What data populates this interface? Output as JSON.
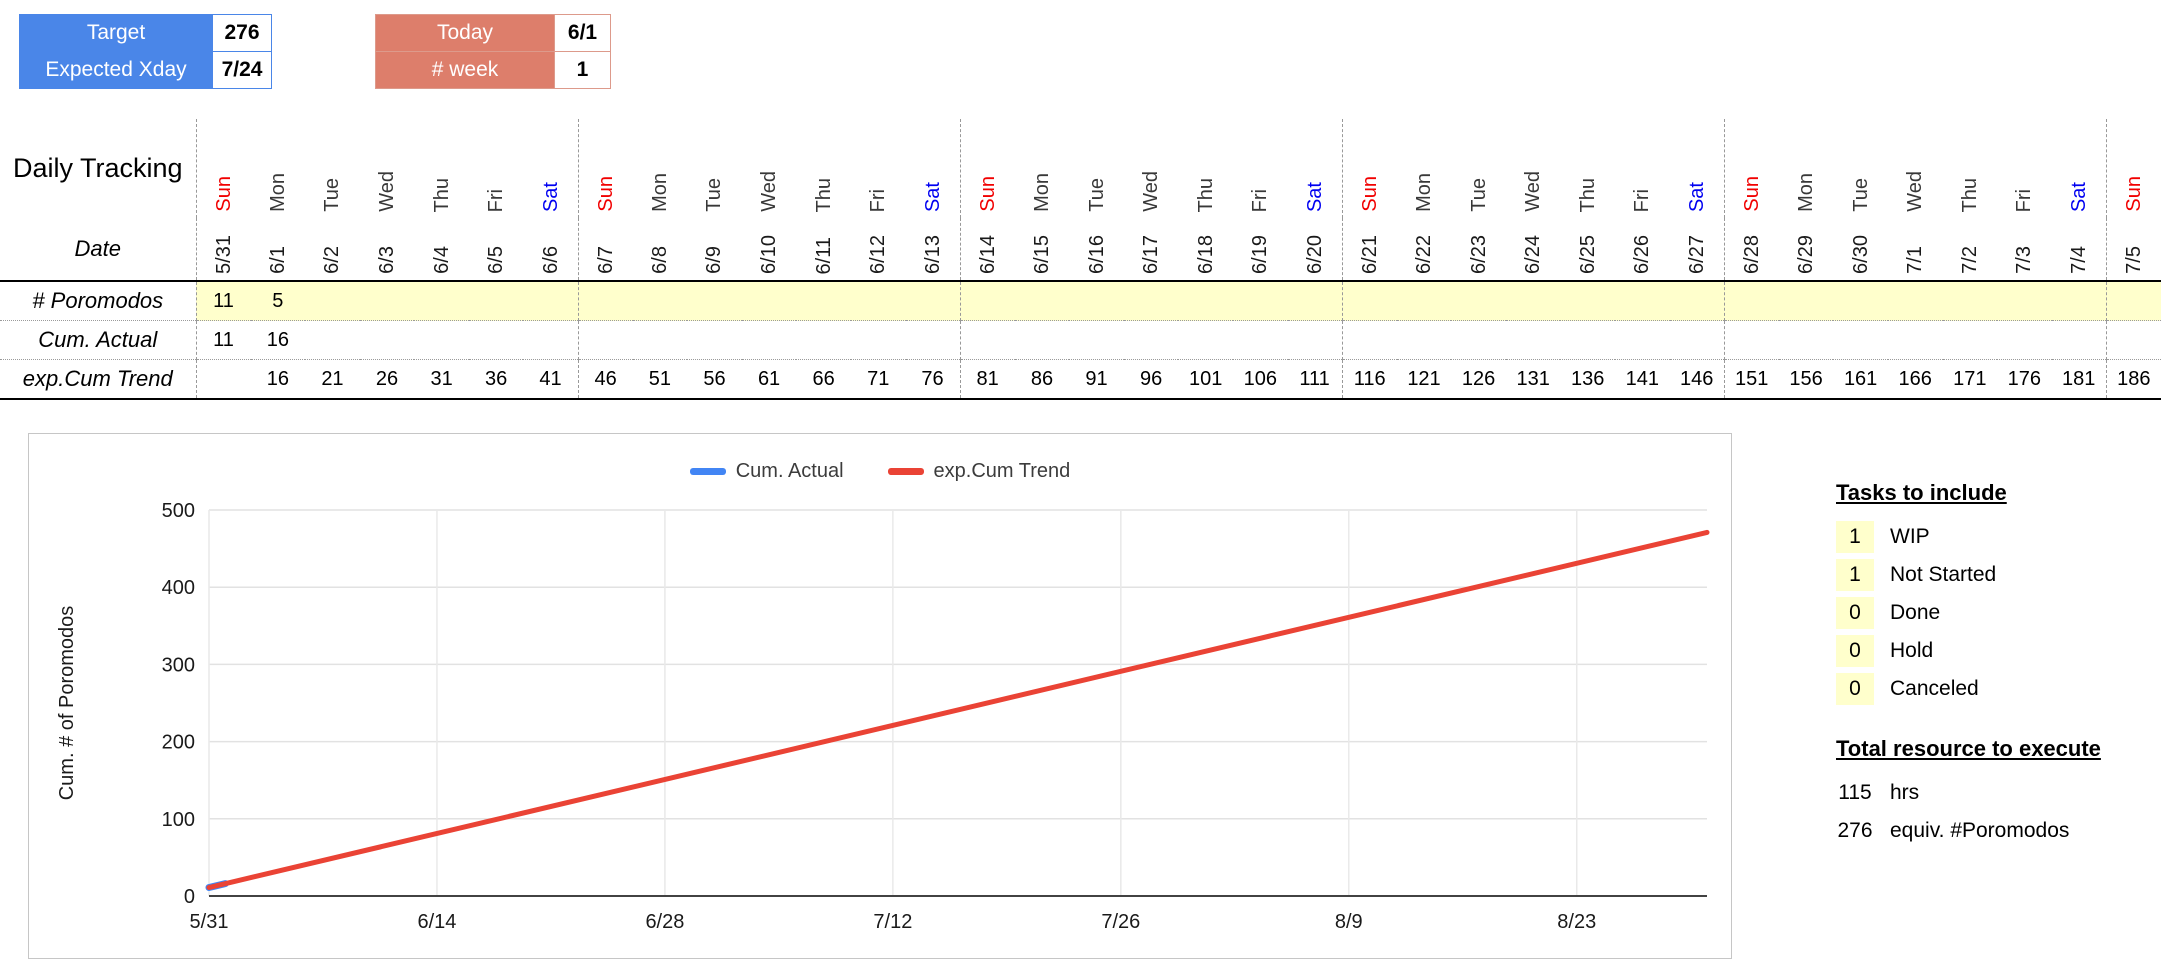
{
  "summary": {
    "target": {
      "label": "Target",
      "value": "276"
    },
    "expected_xday": {
      "label": "Expected Xday",
      "value": "7/24"
    },
    "today": {
      "label": "Today",
      "value": "6/1"
    },
    "week": {
      "label": "# week",
      "value": "1"
    }
  },
  "tracking": {
    "title": "Daily Tracking",
    "date_label": "Date",
    "row_labels": {
      "poromodos": "# Poromodos",
      "cum_actual": "Cum. Actual",
      "trend": "exp.Cum Trend"
    },
    "columns": [
      {
        "day": "Sun",
        "date": "5/31",
        "poromodos": "11",
        "cum_actual": "11",
        "trend": ""
      },
      {
        "day": "Mon",
        "date": "6/1",
        "poromodos": "5",
        "cum_actual": "16",
        "trend": "16"
      },
      {
        "day": "Tue",
        "date": "6/2",
        "poromodos": "",
        "cum_actual": "",
        "trend": "21"
      },
      {
        "day": "Wed",
        "date": "6/3",
        "poromodos": "",
        "cum_actual": "",
        "trend": "26"
      },
      {
        "day": "Thu",
        "date": "6/4",
        "poromodos": "",
        "cum_actual": "",
        "trend": "31"
      },
      {
        "day": "Fri",
        "date": "6/5",
        "poromodos": "",
        "cum_actual": "",
        "trend": "36"
      },
      {
        "day": "Sat",
        "date": "6/6",
        "poromodos": "",
        "cum_actual": "",
        "trend": "41"
      },
      {
        "day": "Sun",
        "date": "6/7",
        "poromodos": "",
        "cum_actual": "",
        "trend": "46"
      },
      {
        "day": "Mon",
        "date": "6/8",
        "poromodos": "",
        "cum_actual": "",
        "trend": "51"
      },
      {
        "day": "Tue",
        "date": "6/9",
        "poromodos": "",
        "cum_actual": "",
        "trend": "56"
      },
      {
        "day": "Wed",
        "date": "6/10",
        "poromodos": "",
        "cum_actual": "",
        "trend": "61"
      },
      {
        "day": "Thu",
        "date": "6/11",
        "poromodos": "",
        "cum_actual": "",
        "trend": "66"
      },
      {
        "day": "Fri",
        "date": "6/12",
        "poromodos": "",
        "cum_actual": "",
        "trend": "71"
      },
      {
        "day": "Sat",
        "date": "6/13",
        "poromodos": "",
        "cum_actual": "",
        "trend": "76"
      },
      {
        "day": "Sun",
        "date": "6/14",
        "poromodos": "",
        "cum_actual": "",
        "trend": "81"
      },
      {
        "day": "Mon",
        "date": "6/15",
        "poromodos": "",
        "cum_actual": "",
        "trend": "86"
      },
      {
        "day": "Tue",
        "date": "6/16",
        "poromodos": "",
        "cum_actual": "",
        "trend": "91"
      },
      {
        "day": "Wed",
        "date": "6/17",
        "poromodos": "",
        "cum_actual": "",
        "trend": "96"
      },
      {
        "day": "Thu",
        "date": "6/18",
        "poromodos": "",
        "cum_actual": "",
        "trend": "101"
      },
      {
        "day": "Fri",
        "date": "6/19",
        "poromodos": "",
        "cum_actual": "",
        "trend": "106"
      },
      {
        "day": "Sat",
        "date": "6/20",
        "poromodos": "",
        "cum_actual": "",
        "trend": "111"
      },
      {
        "day": "Sun",
        "date": "6/21",
        "poromodos": "",
        "cum_actual": "",
        "trend": "116"
      },
      {
        "day": "Mon",
        "date": "6/22",
        "poromodos": "",
        "cum_actual": "",
        "trend": "121"
      },
      {
        "day": "Tue",
        "date": "6/23",
        "poromodos": "",
        "cum_actual": "",
        "trend": "126"
      },
      {
        "day": "Wed",
        "date": "6/24",
        "poromodos": "",
        "cum_actual": "",
        "trend": "131"
      },
      {
        "day": "Thu",
        "date": "6/25",
        "poromodos": "",
        "cum_actual": "",
        "trend": "136"
      },
      {
        "day": "Fri",
        "date": "6/26",
        "poromodos": "",
        "cum_actual": "",
        "trend": "141"
      },
      {
        "day": "Sat",
        "date": "6/27",
        "poromodos": "",
        "cum_actual": "",
        "trend": "146"
      },
      {
        "day": "Sun",
        "date": "6/28",
        "poromodos": "",
        "cum_actual": "",
        "trend": "151"
      },
      {
        "day": "Mon",
        "date": "6/29",
        "poromodos": "",
        "cum_actual": "",
        "trend": "156"
      },
      {
        "day": "Tue",
        "date": "6/30",
        "poromodos": "",
        "cum_actual": "",
        "trend": "161"
      },
      {
        "day": "Wed",
        "date": "7/1",
        "poromodos": "",
        "cum_actual": "",
        "trend": "166"
      },
      {
        "day": "Thu",
        "date": "7/2",
        "poromodos": "",
        "cum_actual": "",
        "trend": "171"
      },
      {
        "day": "Fri",
        "date": "7/3",
        "poromodos": "",
        "cum_actual": "",
        "trend": "176"
      },
      {
        "day": "Sat",
        "date": "7/4",
        "poromodos": "",
        "cum_actual": "",
        "trend": "181"
      },
      {
        "day": "Sun",
        "date": "7/5",
        "poromodos": "",
        "cum_actual": "",
        "trend": "186"
      }
    ]
  },
  "tasks_panel": {
    "title": "Tasks to include",
    "items": [
      {
        "count": "1",
        "label": "WIP"
      },
      {
        "count": "1",
        "label": "Not Started"
      },
      {
        "count": "0",
        "label": "Done"
      },
      {
        "count": "0",
        "label": "Hold"
      },
      {
        "count": "0",
        "label": "Canceled"
      }
    ]
  },
  "resource_panel": {
    "title": "Total resource to execute",
    "items": [
      {
        "value": "115",
        "label": "hrs"
      },
      {
        "value": "276",
        "label": "equiv. #Poromodos"
      }
    ]
  },
  "chart_data": {
    "type": "line",
    "title": "",
    "y_label": "Cum. # of Poromodos",
    "ylim": [
      0,
      500
    ],
    "y_ticks": [
      0,
      100,
      200,
      300,
      400,
      500
    ],
    "x_domain_days": [
      0,
      92
    ],
    "x_ticks": [
      {
        "label": "5/31",
        "day": 0
      },
      {
        "label": "6/14",
        "day": 14
      },
      {
        "label": "6/28",
        "day": 28
      },
      {
        "label": "7/12",
        "day": 42
      },
      {
        "label": "7/26",
        "day": 56
      },
      {
        "label": "8/9",
        "day": 70
      },
      {
        "label": "8/23",
        "day": 84
      }
    ],
    "grid": true,
    "legend_position": "top",
    "series": [
      {
        "name": "Cum. Actual",
        "color": "#4285f4",
        "points": [
          {
            "day": 0,
            "value": 11
          },
          {
            "day": 1,
            "value": 16
          }
        ]
      },
      {
        "name": "exp.Cum Trend",
        "color": "#ea4335",
        "points": [
          {
            "day": 0,
            "value": 11
          },
          {
            "day": 92,
            "value": 471
          }
        ]
      }
    ]
  },
  "colors": {
    "blue_header": "#4a86e8",
    "salmon_header": "#dd7e6b",
    "highlight_yellow": "#ffffcc",
    "sunday_red": "#f10000",
    "saturday_blue": "#0000f1"
  }
}
